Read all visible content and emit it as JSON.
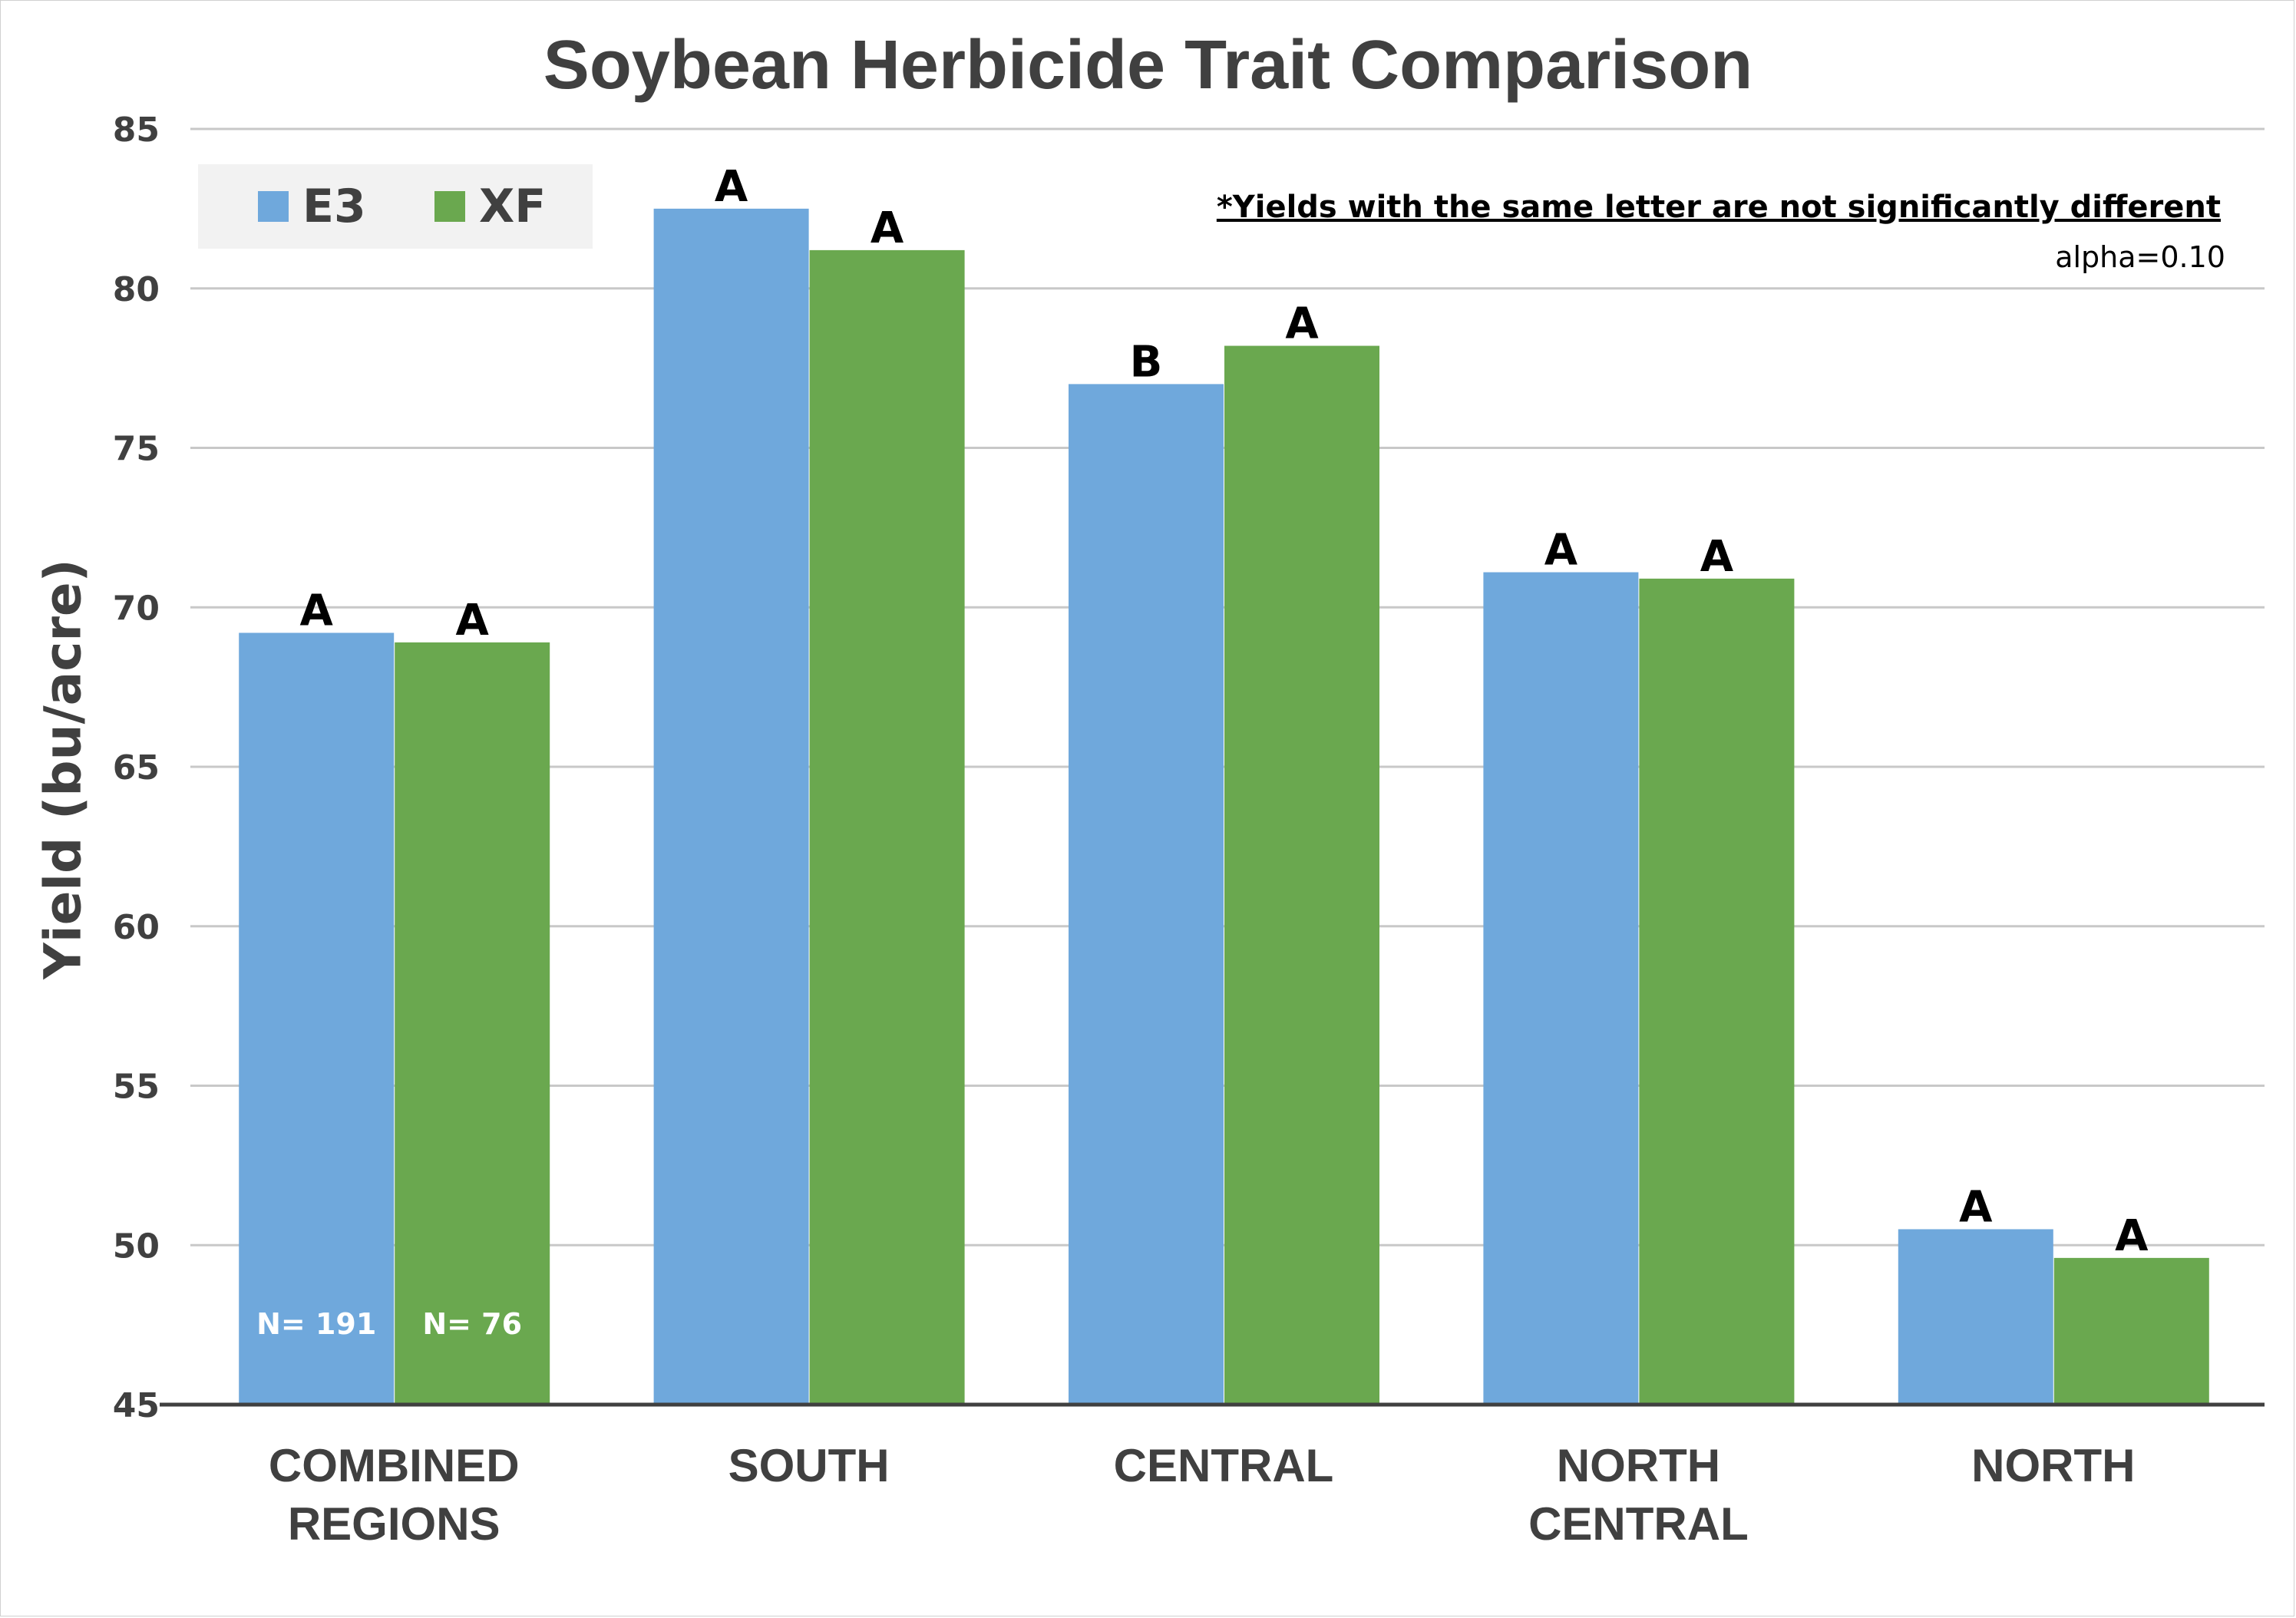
{
  "chart_data": {
    "type": "bar",
    "title": "Soybean Herbicide Trait Comparison",
    "ylabel": "Yield (bu/acre)",
    "xlabel": "",
    "ylim": [
      45,
      85
    ],
    "yticks": [
      45,
      50,
      55,
      60,
      65,
      70,
      75,
      80,
      85
    ],
    "grid": true,
    "legend_position": "top-left",
    "categories": [
      [
        "COMBINED",
        "REGIONS"
      ],
      [
        "SOUTH"
      ],
      [
        "CENTRAL"
      ],
      [
        "NORTH",
        "CENTRAL"
      ],
      [
        "NORTH"
      ]
    ],
    "series": [
      {
        "name": "E3",
        "color": "#6fa8dc",
        "values": [
          69.2,
          82.5,
          77.0,
          71.1,
          50.5
        ],
        "letters": [
          "A",
          "A",
          "B",
          "A",
          "A"
        ]
      },
      {
        "name": "XF",
        "color": "#6aa84f",
        "values": [
          68.9,
          81.2,
          78.2,
          70.9,
          49.6
        ],
        "letters": [
          "A",
          "A",
          "A",
          "A",
          "A"
        ]
      }
    ],
    "sample_sizes": [
      "N= 191",
      "N= 76"
    ],
    "annotations": {
      "note": "*Yields with the same letter are not significantly different",
      "alpha": "alpha=0.10"
    }
  }
}
